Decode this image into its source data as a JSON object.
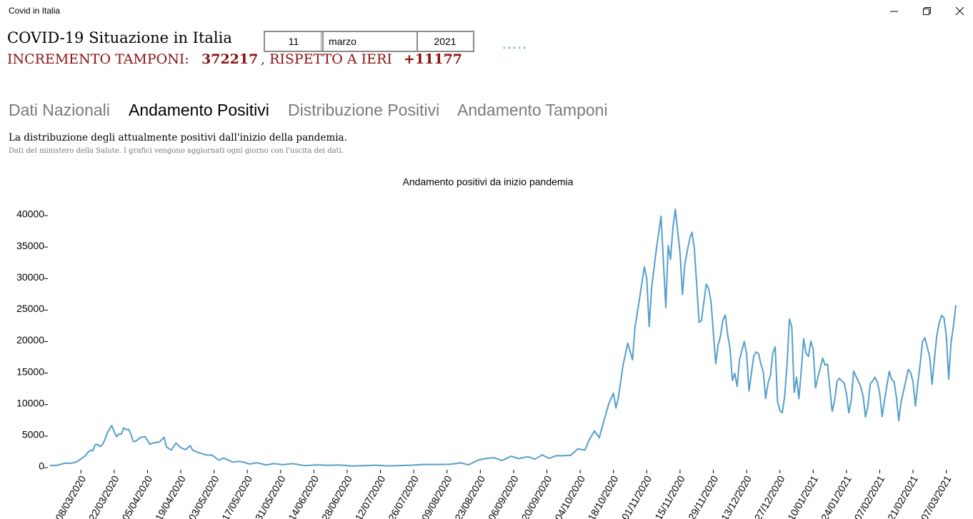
{
  "window": {
    "title": "Covid in Italia"
  },
  "header": {
    "title": "COVID-19 Situazione in Italia",
    "increment_label": "INCREMENTO TAMPONI:",
    "increment_value": "372217",
    "compare_label": ", RISPETTO A IERI",
    "compare_value": "+11177"
  },
  "date_picker": {
    "day": "11",
    "month": "marzo",
    "year": "2021"
  },
  "tabs": [
    "Dati Nazionali",
    "Andamento Positivi",
    "Distribuzione Positivi",
    "Andamento Tamponi"
  ],
  "description": {
    "title": "La distribuzione degli attualmente positivi dall'inizio della pandemia.",
    "subtitle": "Dati del ministero della Salute. I grafici vengono aggiornati ogni giorno con l'uscita dei dati."
  },
  "chart_data": {
    "type": "line",
    "title": "Andamento positivi da inizio pandemia",
    "color": "#559fcb",
    "x": [
      "24/02/2020",
      "27/02/2020",
      "01/03/2020",
      "04/03/2020",
      "06/03/2020",
      "08/03/2020",
      "10/03/2020",
      "11/03/2020",
      "12/03/2020",
      "13/03/2020",
      "14/03/2020",
      "15/03/2020",
      "16/03/2020",
      "17/03/2020",
      "18/03/2020",
      "19/03/2020",
      "20/03/2020",
      "21/03/2020",
      "22/03/2020",
      "23/03/2020",
      "24/03/2020",
      "25/03/2020",
      "26/03/2020",
      "27/03/2020",
      "28/03/2020",
      "29/03/2020",
      "30/03/2020",
      "31/03/2020",
      "02/04/2020",
      "04/04/2020",
      "06/04/2020",
      "08/04/2020",
      "10/04/2020",
      "12/04/2020",
      "13/04/2020",
      "15/04/2020",
      "17/04/2020",
      "19/04/2020",
      "21/04/2020",
      "23/04/2020",
      "24/04/2020",
      "26/04/2020",
      "28/04/2020",
      "30/04/2020",
      "02/05/2020",
      "05/05/2020",
      "07/05/2020",
      "09/05/2020",
      "11/05/2020",
      "13/05/2020",
      "15/05/2020",
      "18/05/2020",
      "21/05/2020",
      "25/05/2020",
      "28/05/2020",
      "01/06/2020",
      "05/06/2020",
      "10/06/2020",
      "15/06/2020",
      "20/06/2020",
      "25/06/2020",
      "30/06/2020",
      "05/07/2020",
      "10/07/2020",
      "15/07/2020",
      "20/07/2020",
      "25/07/2020",
      "30/07/2020",
      "05/08/2020",
      "10/08/2020",
      "15/08/2020",
      "18/08/2020",
      "22/08/2020",
      "26/08/2020",
      "29/08/2020",
      "01/09/2020",
      "05/09/2020",
      "08/09/2020",
      "12/09/2020",
      "15/09/2020",
      "18/09/2020",
      "21/09/2020",
      "24/09/2020",
      "27/09/2020",
      "30/09/2020",
      "03/10/2020",
      "06/10/2020",
      "08/10/2020",
      "10/10/2020",
      "12/10/2020",
      "14/10/2020",
      "16/10/2020",
      "18/10/2020",
      "19/10/2020",
      "20/10/2020",
      "22/10/2020",
      "24/10/2020",
      "26/10/2020",
      "27/10/2020",
      "29/10/2020",
      "31/10/2020",
      "01/11/2020",
      "02/11/2020",
      "03/11/2020",
      "05/11/2020",
      "07/11/2020",
      "08/11/2020",
      "09/11/2020",
      "10/11/2020",
      "11/11/2020",
      "12/11/2020",
      "13/11/2020",
      "15/11/2020",
      "16/11/2020",
      "17/11/2020",
      "19/11/2020",
      "20/11/2020",
      "21/11/2020",
      "23/11/2020",
      "24/11/2020",
      "26/11/2020",
      "27/11/2020",
      "28/11/2020",
      "30/11/2020",
      "01/12/2020",
      "02/12/2020",
      "03/12/2020",
      "04/12/2020",
      "05/12/2020",
      "06/12/2020",
      "07/12/2020",
      "08/12/2020",
      "09/12/2020",
      "10/12/2020",
      "12/12/2020",
      "13/12/2020",
      "14/12/2020",
      "15/12/2020",
      "16/12/2020",
      "17/12/2020",
      "18/12/2020",
      "19/12/2020",
      "20/12/2020",
      "21/12/2020",
      "22/12/2020",
      "23/12/2020",
      "24/12/2020",
      "25/12/2020",
      "26/12/2020",
      "27/12/2020",
      "28/12/2020",
      "29/12/2020",
      "30/12/2020",
      "31/12/2020",
      "01/01/2021",
      "02/01/2021",
      "03/01/2021",
      "04/01/2021",
      "05/01/2021",
      "06/01/2021",
      "07/01/2021",
      "08/01/2021",
      "09/01/2021",
      "10/01/2021",
      "11/01/2021",
      "12/01/2021",
      "13/01/2021",
      "14/01/2021",
      "15/01/2021",
      "16/01/2021",
      "17/01/2021",
      "18/01/2021",
      "19/01/2021",
      "20/01/2021",
      "21/01/2021",
      "22/01/2021",
      "23/01/2021",
      "24/01/2021",
      "25/01/2021",
      "26/01/2021",
      "27/01/2021",
      "28/01/2021",
      "29/01/2021",
      "30/01/2021",
      "31/01/2021",
      "01/02/2021",
      "02/02/2021",
      "03/02/2021",
      "04/02/2021",
      "05/02/2021",
      "06/02/2021",
      "07/02/2021",
      "08/02/2021",
      "09/02/2021",
      "10/02/2021",
      "11/02/2021",
      "12/02/2021",
      "13/02/2021",
      "14/02/2021",
      "15/02/2021",
      "16/02/2021",
      "17/02/2021",
      "18/02/2021",
      "19/02/2021",
      "20/02/2021",
      "21/02/2021",
      "22/02/2021",
      "23/02/2021",
      "24/02/2021",
      "25/02/2021",
      "26/02/2021",
      "27/02/2021",
      "28/02/2021",
      "01/03/2021",
      "02/03/2021",
      "03/03/2021",
      "04/03/2021",
      "05/03/2021",
      "06/03/2021",
      "07/03/2021",
      "08/03/2021",
      "09/03/2021",
      "10/03/2021",
      "11/03/2021"
    ],
    "values": [
      221,
      250,
      566,
      587,
      778,
      1247,
      1797,
      2313,
      2651,
      2547,
      3497,
      3590,
      3233,
      3526,
      4207,
      5322,
      5986,
      6557,
      5560,
      4789,
      5249,
      5210,
      6203,
      5909,
      5974,
      5217,
      4050,
      4053,
      4668,
      4805,
      3599,
      3836,
      3951,
      4694,
      3153,
      2667,
      3786,
      3047,
      2729,
      3370,
      2646,
      2324,
      2086,
      1872,
      1900,
      1075,
      1401,
      1083,
      744,
      888,
      789,
      451,
      652,
      300,
      516,
      355,
      518,
      202,
      301,
      262,
      296,
      142,
      192,
      276,
      162,
      219,
      275,
      386,
      384,
      412,
      629,
      320,
      1071,
      1367,
      1444,
      996,
      1695,
      1298,
      1616,
      1229,
      1907,
      1350,
      1786,
      1766,
      1851,
      2844,
      2677,
      4458,
      5724,
      4619,
      7332,
      10010,
      11705,
      9338,
      10874,
      16079,
      19644,
      17012,
      21994,
      26831,
      31758,
      29907,
      22253,
      28244,
      34505,
      39811,
      32616,
      25271,
      35098,
      32961,
      37978,
      40902,
      33979,
      27354,
      32191,
      36176,
      37242,
      34767,
      22930,
      23232,
      29003,
      28352,
      26323,
      16377,
      19350,
      20709,
      23225,
      24099,
      21052,
      18887,
      13720,
      14842,
      12756,
      16999,
      19903,
      17938,
      12030,
      14844,
      17572,
      18236,
      17992,
      16308,
      15104,
      10872,
      13318,
      14522,
      18040,
      19037,
      10407,
      8913,
      8585,
      11224,
      16202,
      23477,
      22211,
      11831,
      14245,
      10800,
      15378,
      20331,
      18020,
      17533,
      19978,
      18627,
      12532,
      14242,
      15774,
      17246,
      16146,
      16310,
      12545,
      8825,
      10497,
      13571,
      14078,
      13633,
      13331,
      11629,
      8561,
      10593,
      15204,
      14372,
      13574,
      12715,
      11252,
      7925,
      9660,
      13189,
      13659,
      14218,
      13442,
      11641,
      7970,
      10630,
      12956,
      15146,
      13908,
      13532,
      11068,
      7351,
      10386,
      12074,
      13762,
      15479,
      14931,
      13452,
      9630,
      13314,
      16424,
      19886,
      20499,
      18916,
      17455,
      13114,
      17083,
      20884,
      22865,
      24036,
      23641,
      20765,
      13902,
      19749,
      22409,
      25673
    ],
    "xlim": [
      "24/02/2020",
      "11/03/2021"
    ],
    "xticks": [
      "08/03/2020",
      "22/03/2020",
      "05/04/2020",
      "19/04/2020",
      "03/05/2020",
      "17/05/2020",
      "31/05/2020",
      "14/06/2020",
      "28/06/2020",
      "12/07/2020",
      "26/07/2020",
      "09/08/2020",
      "23/08/2020",
      "06/09/2020",
      "20/09/2020",
      "04/10/2020",
      "18/10/2020",
      "01/11/2020",
      "15/11/2020",
      "29/11/2020",
      "13/12/2020",
      "27/12/2020",
      "10/01/2021",
      "24/01/2021",
      "07/02/2021",
      "21/02/2021",
      "07/03/2021"
    ],
    "ylim": [
      0,
      42000
    ],
    "yticks": [
      0,
      5000,
      10000,
      15000,
      20000,
      25000,
      30000,
      35000,
      40000
    ],
    "grid": false
  }
}
